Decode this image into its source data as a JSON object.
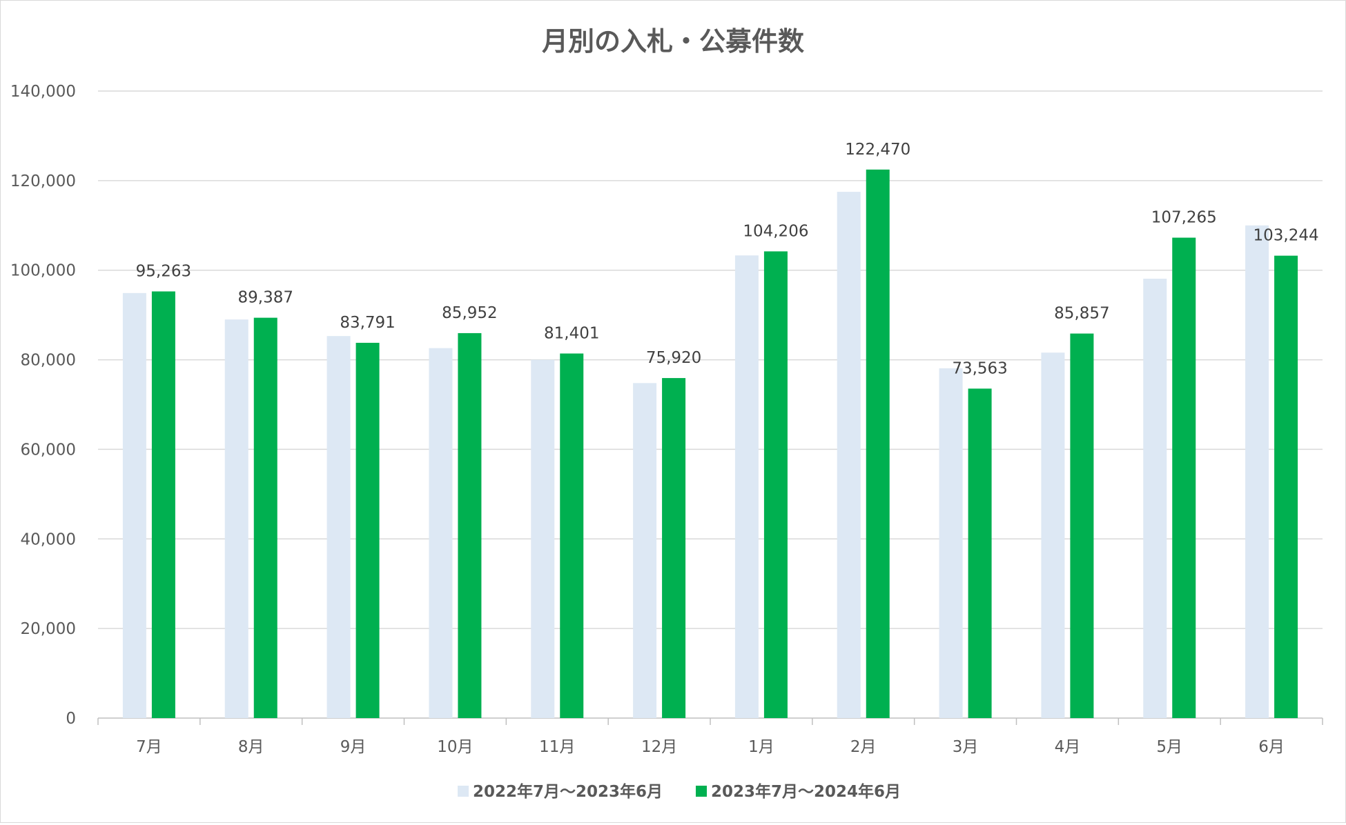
{
  "chart_data": {
    "type": "bar",
    "title": "月別の入札・公募件数",
    "xlabel": "",
    "ylabel": "",
    "categories": [
      "7月",
      "8月",
      "9月",
      "10月",
      "11月",
      "12月",
      "1月",
      "2月",
      "3月",
      "4月",
      "5月",
      "6月"
    ],
    "series": [
      {
        "name": "2022年7月～2023年6月",
        "values": [
          94900,
          89000,
          85300,
          82600,
          80000,
          74800,
          103300,
          117500,
          78100,
          81600,
          98100,
          110000
        ],
        "color": "#dde8f4"
      },
      {
        "name": "2023年7月～2024年6月",
        "values": [
          95263,
          89387,
          83791,
          85952,
          81401,
          75920,
          104206,
          122470,
          73563,
          85857,
          107265,
          103244
        ],
        "color": "#00b050",
        "data_labels": [
          "95,263",
          "89,387",
          "83,791",
          "85,952",
          "81,401",
          "75,920",
          "104,206",
          "122,470",
          "73,563",
          "85,857",
          "107,265",
          "103,244"
        ]
      }
    ],
    "ylim": [
      0,
      140000
    ],
    "y_ticks": [
      0,
      20000,
      40000,
      60000,
      80000,
      100000,
      120000,
      140000
    ],
    "y_tick_labels": [
      "0",
      "20,000",
      "40,000",
      "60,000",
      "80,000",
      "100,000",
      "120,000",
      "140,000"
    ],
    "grid": true,
    "legend_position": "bottom",
    "gridline_color": "#d9d9d9",
    "axis_color": "#bfbfbf"
  }
}
